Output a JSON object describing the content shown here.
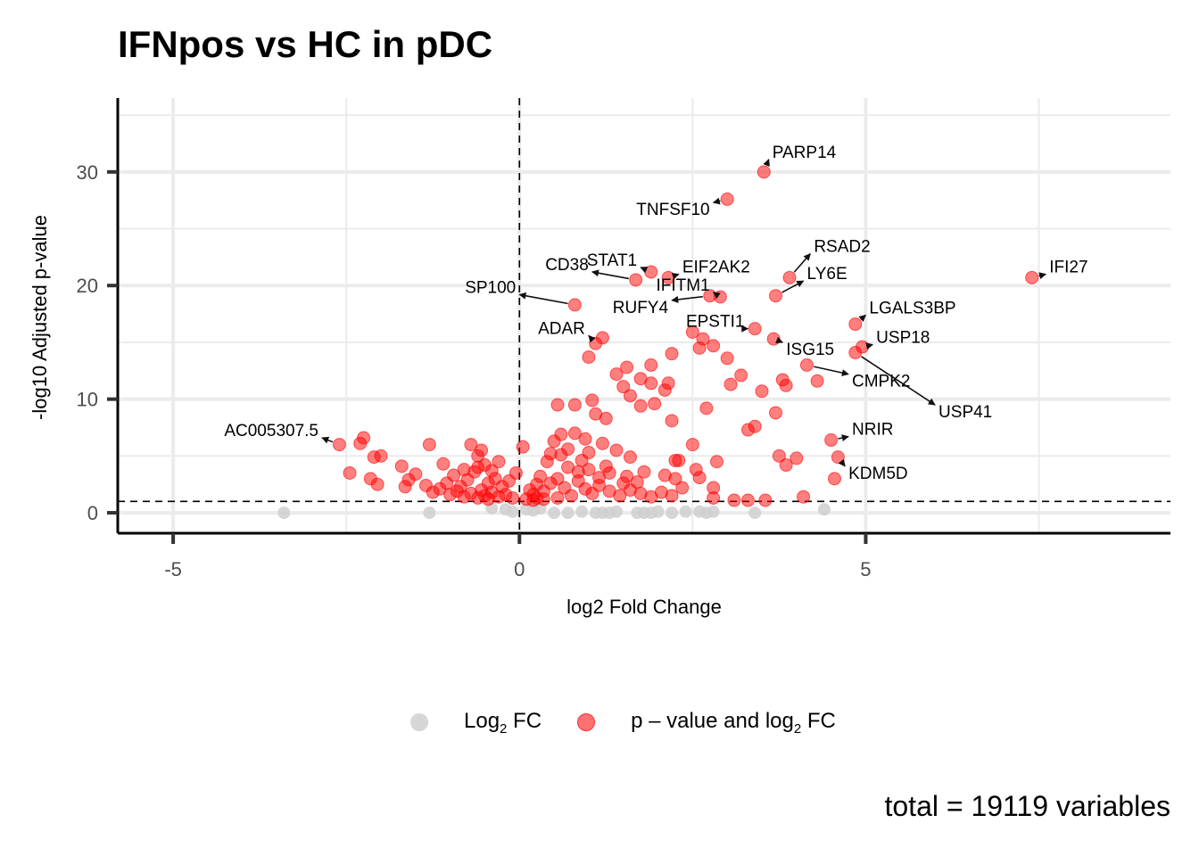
{
  "chart_data": {
    "type": "scatter",
    "title": "IFNpos vs HC in pDC",
    "xlabel": "log2 Fold Change",
    "ylabel": "-log10 Adjusted p-value",
    "xlim": [
      -5.8,
      9.4
    ],
    "ylim": [
      -1.8,
      36.5
    ],
    "xticks": [
      -5,
      0,
      5
    ],
    "yticks": [
      0,
      10,
      20,
      30
    ],
    "grid": true,
    "legend_position": "bottom",
    "thresholds": {
      "x": 0,
      "y": 1.0
    },
    "caption": "total = 19119 variables",
    "series": [
      {
        "name": "Log2 FC",
        "legend_label": "Log",
        "legend_sub": "2",
        "legend_suffix": " FC",
        "color": "#cccccc",
        "points": [
          [
            -3.4,
            0.0
          ],
          [
            -1.3,
            0.0
          ],
          [
            0.1,
            0.3
          ],
          [
            0.5,
            0.0
          ],
          [
            0.7,
            0.0
          ],
          [
            0.9,
            0.1
          ],
          [
            1.1,
            0.0
          ],
          [
            1.2,
            0.0
          ],
          [
            1.3,
            0.0
          ],
          [
            1.4,
            0.1
          ],
          [
            1.7,
            0.0
          ],
          [
            1.8,
            0.0
          ],
          [
            1.9,
            0.0
          ],
          [
            2.0,
            0.1
          ],
          [
            2.2,
            0.0
          ],
          [
            2.4,
            0.1
          ],
          [
            2.6,
            0.1
          ],
          [
            2.7,
            0.0
          ],
          [
            2.8,
            0.1
          ],
          [
            3.4,
            0.0
          ],
          [
            4.4,
            0.3
          ],
          [
            -0.4,
            0.4
          ],
          [
            -0.2,
            0.3
          ],
          [
            0.3,
            0.4
          ],
          [
            -0.1,
            0.1
          ],
          [
            0.2,
            0.2
          ]
        ]
      },
      {
        "name": "p - value and log2 FC",
        "legend_label": "p – value and log",
        "legend_sub": "2",
        "legend_suffix": " FC",
        "color": "#ff0000",
        "points": [
          [
            3.53,
            30.0
          ],
          [
            3.0,
            27.6
          ],
          [
            7.4,
            20.7
          ],
          [
            3.9,
            20.7
          ],
          [
            2.15,
            20.7
          ],
          [
            1.9,
            21.2
          ],
          [
            1.68,
            20.5
          ],
          [
            0.8,
            18.3
          ],
          [
            2.75,
            19.1
          ],
          [
            2.9,
            19.0
          ],
          [
            3.7,
            19.1
          ],
          [
            4.85,
            16.6
          ],
          [
            3.4,
            16.2
          ],
          [
            2.5,
            15.9
          ],
          [
            3.67,
            15.3
          ],
          [
            4.95,
            14.6
          ],
          [
            4.85,
            14.1
          ],
          [
            1.2,
            15.4
          ],
          [
            1.1,
            14.9
          ],
          [
            2.65,
            15.3
          ],
          [
            2.8,
            14.7
          ],
          [
            2.6,
            14.5
          ],
          [
            4.15,
            13.0
          ],
          [
            4.3,
            11.6
          ],
          [
            1.0,
            13.7
          ],
          [
            3.0,
            13.6
          ],
          [
            3.2,
            12.1
          ],
          [
            1.9,
            13.0
          ],
          [
            2.2,
            14.0
          ],
          [
            1.4,
            12.2
          ],
          [
            1.55,
            12.8
          ],
          [
            1.75,
            11.8
          ],
          [
            3.05,
            11.3
          ],
          [
            3.5,
            10.7
          ],
          [
            3.8,
            11.7
          ],
          [
            3.85,
            11.2
          ],
          [
            1.5,
            11.1
          ],
          [
            1.9,
            11.4
          ],
          [
            2.1,
            10.8
          ],
          [
            2.15,
            11.4
          ],
          [
            1.6,
            10.3
          ],
          [
            1.05,
            9.9
          ],
          [
            3.7,
            8.8
          ],
          [
            3.4,
            7.6
          ],
          [
            3.3,
            7.3
          ],
          [
            2.7,
            9.2
          ],
          [
            1.75,
            9.4
          ],
          [
            1.95,
            9.6
          ],
          [
            2.2,
            8.1
          ],
          [
            1.1,
            8.7
          ],
          [
            1.25,
            8.3
          ],
          [
            0.55,
            9.5
          ],
          [
            0.8,
            9.5
          ],
          [
            4.5,
            6.4
          ],
          [
            4.6,
            4.9
          ],
          [
            4.55,
            3.0
          ],
          [
            4.1,
            1.4
          ],
          [
            3.85,
            4.2
          ],
          [
            4.0,
            4.8
          ],
          [
            3.75,
            5.0
          ],
          [
            -2.6,
            6.0
          ],
          [
            -2.25,
            6.6
          ],
          [
            -2.3,
            6.1
          ],
          [
            -2.0,
            5.0
          ],
          [
            -2.1,
            4.9
          ],
          [
            -1.7,
            4.1
          ],
          [
            -2.45,
            3.5
          ],
          [
            -2.15,
            3.0
          ],
          [
            -2.05,
            2.5
          ],
          [
            -1.65,
            2.3
          ],
          [
            -1.5,
            3.4
          ],
          [
            -1.6,
            2.9
          ],
          [
            -1.3,
            6.0
          ],
          [
            -1.1,
            4.3
          ],
          [
            -0.7,
            6.0
          ],
          [
            -0.55,
            5.5
          ],
          [
            -0.6,
            5.0
          ],
          [
            0.05,
            5.8
          ],
          [
            0.5,
            6.3
          ],
          [
            0.6,
            6.9
          ],
          [
            0.8,
            7.0
          ],
          [
            0.95,
            6.5
          ],
          [
            1.2,
            6.1
          ],
          [
            1.4,
            5.5
          ],
          [
            1.6,
            4.9
          ],
          [
            2.5,
            6.0
          ],
          [
            2.3,
            4.6
          ],
          [
            2.25,
            4.6
          ],
          [
            2.55,
            3.8
          ],
          [
            2.85,
            4.5
          ],
          [
            2.8,
            2.2
          ],
          [
            2.8,
            1.3
          ],
          [
            3.1,
            1.1
          ],
          [
            3.3,
            1.1
          ],
          [
            3.55,
            1.1
          ],
          [
            2.6,
            3.1
          ],
          [
            2.1,
            3.3
          ],
          [
            2.25,
            3.0
          ],
          [
            1.8,
            3.6
          ],
          [
            1.7,
            2.7
          ],
          [
            1.55,
            3.2
          ],
          [
            1.3,
            3.5
          ],
          [
            1.0,
            3.8
          ],
          [
            0.7,
            4.0
          ],
          [
            0.4,
            4.5
          ],
          [
            0.3,
            3.2
          ],
          [
            0.25,
            2.5
          ],
          [
            0.15,
            2.0
          ],
          [
            0.2,
            1.6
          ],
          [
            0.35,
            1.9
          ],
          [
            0.45,
            2.6
          ],
          [
            0.55,
            3.0
          ],
          [
            0.65,
            2.2
          ],
          [
            0.75,
            1.5
          ],
          [
            0.85,
            2.8
          ],
          [
            0.95,
            2.1
          ],
          [
            1.05,
            1.7
          ],
          [
            1.15,
            2.4
          ],
          [
            1.3,
            1.9
          ],
          [
            1.45,
            1.5
          ],
          [
            1.6,
            2.0
          ],
          [
            1.75,
            1.7
          ],
          [
            1.9,
            1.4
          ],
          [
            2.05,
            1.8
          ],
          [
            2.2,
            1.5
          ],
          [
            2.35,
            2.2
          ],
          [
            0.6,
            5.1
          ],
          [
            0.9,
            4.6
          ],
          [
            1.0,
            5.3
          ],
          [
            0.7,
            5.6
          ],
          [
            0.45,
            5.2
          ],
          [
            1.25,
            4.1
          ],
          [
            1.5,
            2.6
          ],
          [
            0.55,
            1.3
          ],
          [
            0.35,
            1.2
          ],
          [
            0.25,
            1.3
          ],
          [
            -0.05,
            3.5
          ],
          [
            -0.15,
            2.8
          ],
          [
            -0.25,
            2.3
          ],
          [
            -0.35,
            3.0
          ],
          [
            -0.45,
            2.6
          ],
          [
            -0.55,
            2.0
          ],
          [
            -0.65,
            3.6
          ],
          [
            -0.75,
            2.9
          ],
          [
            -0.85,
            2.3
          ],
          [
            -0.95,
            3.3
          ],
          [
            -1.05,
            2.6
          ],
          [
            -1.15,
            2.1
          ],
          [
            -1.25,
            1.8
          ],
          [
            -1.35,
            2.4
          ],
          [
            -0.2,
            1.6
          ],
          [
            -0.3,
            1.4
          ],
          [
            -0.4,
            1.8
          ],
          [
            -0.5,
            1.5
          ],
          [
            -0.6,
            1.3
          ],
          [
            -0.7,
            1.7
          ],
          [
            -0.8,
            1.4
          ],
          [
            -0.9,
            1.9
          ],
          [
            -1.0,
            1.6
          ],
          [
            -0.5,
            4.2
          ],
          [
            -0.6,
            4.0
          ],
          [
            -0.8,
            3.8
          ],
          [
            -0.4,
            3.7
          ],
          [
            -0.3,
            4.5
          ],
          [
            -0.45,
            1.2
          ],
          [
            0.1,
            1.2
          ],
          [
            0.2,
            1.1
          ],
          [
            -0.1,
            1.3
          ],
          [
            1.15,
            3.1
          ],
          [
            0.85,
            3.6
          ]
        ]
      }
    ],
    "annotations": [
      {
        "label": "PARP14",
        "x": 3.53,
        "y": 30.0,
        "tx": 3.6,
        "ty": 31.1
      },
      {
        "label": "TNFSF10",
        "x": 3.0,
        "y": 27.6,
        "tx": 2.8,
        "ty": 27.3
      },
      {
        "label": "IFI27",
        "x": 7.4,
        "y": 20.7,
        "tx": 7.6,
        "ty": 21.0
      },
      {
        "label": "RSAD2",
        "x": 3.9,
        "y": 20.7,
        "tx": 4.2,
        "ty": 22.8
      },
      {
        "label": "LY6E",
        "x": 3.7,
        "y": 19.1,
        "tx": 4.1,
        "ty": 20.4
      },
      {
        "label": "EIF2AK2",
        "x": 2.15,
        "y": 20.7,
        "tx": 2.3,
        "ty": 21.0
      },
      {
        "label": "STAT1",
        "x": 1.9,
        "y": 21.2,
        "tx": 1.75,
        "ty": 21.6
      },
      {
        "label": "CD38",
        "x": 1.68,
        "y": 20.5,
        "tx": 1.05,
        "ty": 21.2
      },
      {
        "label": "SP100",
        "x": 0.8,
        "y": 18.3,
        "tx": 0.0,
        "ty": 19.2
      },
      {
        "label": "RUFY4",
        "x": 2.75,
        "y": 19.1,
        "tx": 2.2,
        "ty": 18.7
      },
      {
        "label": "IFITM1",
        "x": 2.9,
        "y": 19.0,
        "tx": 2.8,
        "ty": 19.4
      },
      {
        "label": "EPSTI1",
        "x": 3.4,
        "y": 16.2,
        "tx": 3.3,
        "ty": 16.2
      },
      {
        "label": "LGALS3BP",
        "x": 4.85,
        "y": 16.6,
        "tx": 5.0,
        "ty": 17.4
      },
      {
        "label": "ADAR",
        "x": 1.1,
        "y": 14.9,
        "tx": 1.0,
        "ty": 15.6
      },
      {
        "label": "ISG15",
        "x": 3.67,
        "y": 15.3,
        "tx": 3.8,
        "ty": 15.0
      },
      {
        "label": "USP18",
        "x": 4.95,
        "y": 14.6,
        "tx": 5.1,
        "ty": 14.8
      },
      {
        "label": "CMPK2",
        "x": 4.15,
        "y": 13.0,
        "tx": 4.75,
        "ty": 12.2
      },
      {
        "label": "USP41",
        "x": 4.85,
        "y": 14.1,
        "tx": 6.0,
        "ty": 9.5
      },
      {
        "label": "NRIR",
        "x": 4.5,
        "y": 6.4,
        "tx": 4.75,
        "ty": 6.7
      },
      {
        "label": "KDM5D",
        "x": 4.6,
        "y": 4.9,
        "tx": 4.7,
        "ty": 4.1
      },
      {
        "label": "AC005307.5",
        "x": -2.6,
        "y": 6.0,
        "tx": -2.85,
        "ty": 6.6
      }
    ]
  }
}
